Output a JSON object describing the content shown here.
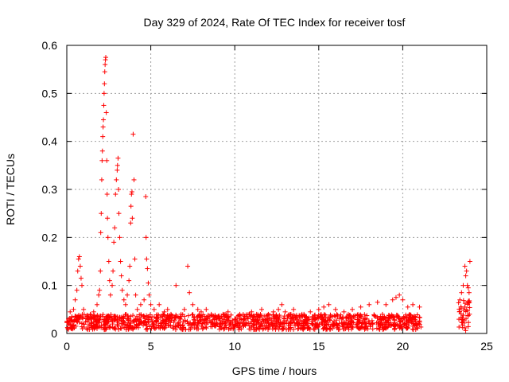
{
  "chart_data": {
    "type": "scatter",
    "title": "Day 329 of 2024, Rate Of TEC Index for receiver tosf",
    "xlabel": "GPS time / hours",
    "ylabel": "ROTI / TECUs",
    "xlim": [
      0,
      25
    ],
    "ylim": [
      0,
      0.6
    ],
    "xticks": [
      "0",
      "5",
      "10",
      "15",
      "20",
      "25"
    ],
    "yticks": [
      "0",
      "0.1",
      "0.2",
      "0.3",
      "0.4",
      "0.5",
      "0.6"
    ],
    "grid": true,
    "marker": "plus",
    "color": "#ff0000",
    "series": [
      {
        "points": [
          [
            0.0,
            0.025
          ],
          [
            0.1,
            0.03
          ],
          [
            0.2,
            0.045
          ],
          [
            0.3,
            0.035
          ],
          [
            0.4,
            0.05
          ],
          [
            0.5,
            0.07
          ],
          [
            0.6,
            0.09
          ],
          [
            0.65,
            0.13
          ],
          [
            0.7,
            0.155
          ],
          [
            0.75,
            0.16
          ],
          [
            0.8,
            0.14
          ],
          [
            0.85,
            0.115
          ],
          [
            0.9,
            0.1
          ],
          [
            1.0,
            0.05
          ],
          [
            1.2,
            0.035
          ],
          [
            1.4,
            0.04
          ],
          [
            1.6,
            0.045
          ],
          [
            1.8,
            0.06
          ],
          [
            1.9,
            0.08
          ],
          [
            1.95,
            0.09
          ],
          [
            2.0,
            0.13
          ],
          [
            2.02,
            0.21
          ],
          [
            2.05,
            0.25
          ],
          [
            2.08,
            0.32
          ],
          [
            2.1,
            0.36
          ],
          [
            2.12,
            0.38
          ],
          [
            2.14,
            0.41
          ],
          [
            2.16,
            0.43
          ],
          [
            2.18,
            0.445
          ],
          [
            2.2,
            0.475
          ],
          [
            2.22,
            0.5
          ],
          [
            2.24,
            0.52
          ],
          [
            2.26,
            0.545
          ],
          [
            2.28,
            0.56
          ],
          [
            2.3,
            0.57
          ],
          [
            2.32,
            0.575
          ],
          [
            2.35,
            0.46
          ],
          [
            2.38,
            0.36
          ],
          [
            2.4,
            0.29
          ],
          [
            2.42,
            0.24
          ],
          [
            2.45,
            0.2
          ],
          [
            2.5,
            0.15
          ],
          [
            2.55,
            0.11
          ],
          [
            2.6,
            0.08
          ],
          [
            2.7,
            0.1
          ],
          [
            2.75,
            0.13
          ],
          [
            2.8,
            0.19
          ],
          [
            2.85,
            0.22
          ],
          [
            2.9,
            0.29
          ],
          [
            2.95,
            0.32
          ],
          [
            3.0,
            0.34
          ],
          [
            3.02,
            0.35
          ],
          [
            3.05,
            0.365
          ],
          [
            3.08,
            0.3
          ],
          [
            3.1,
            0.25
          ],
          [
            3.15,
            0.2
          ],
          [
            3.2,
            0.15
          ],
          [
            3.25,
            0.12
          ],
          [
            3.3,
            0.09
          ],
          [
            3.4,
            0.07
          ],
          [
            3.5,
            0.06
          ],
          [
            3.6,
            0.08
          ],
          [
            3.7,
            0.11
          ],
          [
            3.75,
            0.14
          ],
          [
            3.8,
            0.23
          ],
          [
            3.82,
            0.265
          ],
          [
            3.85,
            0.29
          ],
          [
            3.88,
            0.295
          ],
          [
            3.9,
            0.24
          ],
          [
            3.95,
            0.415
          ],
          [
            4.0,
            0.32
          ],
          [
            4.05,
            0.155
          ],
          [
            4.1,
            0.08
          ],
          [
            4.2,
            0.05
          ],
          [
            4.4,
            0.06
          ],
          [
            4.6,
            0.07
          ],
          [
            4.7,
            0.285
          ],
          [
            4.72,
            0.2
          ],
          [
            4.75,
            0.155
          ],
          [
            4.8,
            0.135
          ],
          [
            4.85,
            0.105
          ],
          [
            4.9,
            0.08
          ],
          [
            5.0,
            0.06
          ],
          [
            5.2,
            0.05
          ],
          [
            5.5,
            0.06
          ],
          [
            5.8,
            0.045
          ],
          [
            6.0,
            0.05
          ],
          [
            6.2,
            0.04
          ],
          [
            6.5,
            0.1
          ],
          [
            6.8,
            0.04
          ],
          [
            7.0,
            0.05
          ],
          [
            7.2,
            0.14
          ],
          [
            7.3,
            0.085
          ],
          [
            7.5,
            0.06
          ],
          [
            7.8,
            0.05
          ],
          [
            8.0,
            0.045
          ],
          [
            8.3,
            0.05
          ],
          [
            8.6,
            0.04
          ],
          [
            9.0,
            0.035
          ],
          [
            9.3,
            0.04
          ],
          [
            9.6,
            0.045
          ],
          [
            10.0,
            0.03
          ],
          [
            10.3,
            0.04
          ],
          [
            10.6,
            0.035
          ],
          [
            11.0,
            0.045
          ],
          [
            11.3,
            0.04
          ],
          [
            11.6,
            0.05
          ],
          [
            12.0,
            0.04
          ],
          [
            12.3,
            0.045
          ],
          [
            12.6,
            0.05
          ],
          [
            12.8,
            0.06
          ],
          [
            13.0,
            0.045
          ],
          [
            13.5,
            0.05
          ],
          [
            14.0,
            0.04
          ],
          [
            14.5,
            0.045
          ],
          [
            15.0,
            0.05
          ],
          [
            15.3,
            0.055
          ],
          [
            15.6,
            0.06
          ],
          [
            16.0,
            0.05
          ],
          [
            16.5,
            0.045
          ],
          [
            17.0,
            0.05
          ],
          [
            17.5,
            0.055
          ],
          [
            18.0,
            0.06
          ],
          [
            18.5,
            0.065
          ],
          [
            19.0,
            0.06
          ],
          [
            19.4,
            0.07
          ],
          [
            19.6,
            0.075
          ],
          [
            19.8,
            0.08
          ],
          [
            20.0,
            0.07
          ],
          [
            20.3,
            0.055
          ],
          [
            20.6,
            0.06
          ],
          [
            21.0,
            0.055
          ],
          [
            23.4,
            0.07
          ],
          [
            23.5,
            0.085
          ],
          [
            23.6,
            0.1
          ],
          [
            23.7,
            0.14
          ],
          [
            23.75,
            0.12
          ],
          [
            23.8,
            0.13
          ],
          [
            23.85,
            0.1
          ],
          [
            23.9,
            0.095
          ],
          [
            23.95,
            0.085
          ],
          [
            24.0,
            0.15
          ]
        ]
      }
    ],
    "background_noise": [
      {
        "x_from": 0.0,
        "x_to": 21.1,
        "y_min": 0.008,
        "y_max": 0.04
      },
      {
        "x_from": 23.3,
        "x_to": 24.0,
        "y_min": 0.005,
        "y_max": 0.07
      }
    ]
  }
}
